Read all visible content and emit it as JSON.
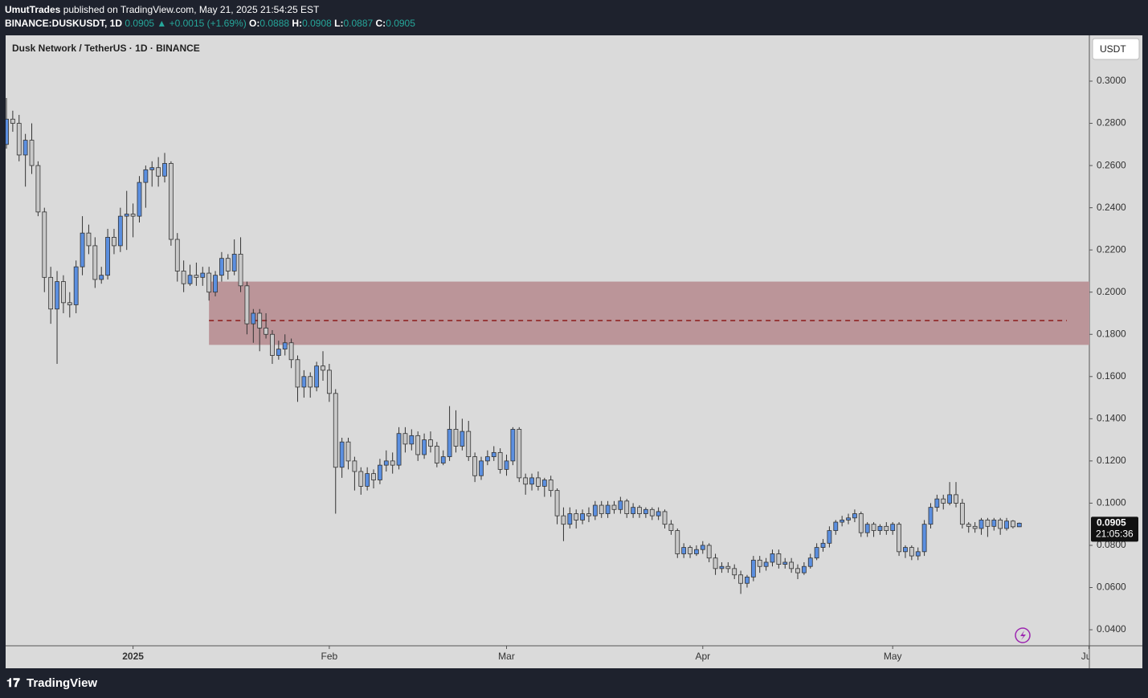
{
  "header": {
    "author": "UmutTrades",
    "published": "published on TradingView.com, May 21, 2025 21:54:25 EST",
    "symbol": "BINANCE:DUSKUSDT, 1D",
    "price": "0.0905",
    "change": "▲ +0.0015 (+1.69%)",
    "ohlc": [
      {
        "label": "O:",
        "value": "0.0888"
      },
      {
        "label": "H:",
        "value": "0.0908"
      },
      {
        "label": "L:",
        "value": "0.0887"
      },
      {
        "label": "C:",
        "value": "0.0905"
      }
    ]
  },
  "chart_data": {
    "type": "candlestick",
    "title": "Dusk Network / TetherUS · 1D · BINANCE",
    "currency": "USDT",
    "up_color": "#5b8fe0",
    "down_color": "#c9c9c9",
    "ylim": [
      0.0324,
      0.3217
    ],
    "yticks": [
      {
        "value": 0.04,
        "label": "0.0400"
      },
      {
        "value": 0.06,
        "label": "0.0600"
      },
      {
        "value": 0.08,
        "label": "0.0800"
      },
      {
        "value": 0.1,
        "label": "0.1000"
      },
      {
        "value": 0.12,
        "label": "0.1200"
      },
      {
        "value": 0.14,
        "label": "0.1400"
      },
      {
        "value": 0.16,
        "label": "0.1600"
      },
      {
        "value": 0.18,
        "label": "0.1800"
      },
      {
        "value": 0.2,
        "label": "0.2000"
      },
      {
        "value": 0.22,
        "label": "0.2200"
      },
      {
        "value": 0.24,
        "label": "0.2400"
      },
      {
        "value": 0.26,
        "label": "0.2600"
      },
      {
        "value": 0.28,
        "label": "0.2800"
      },
      {
        "value": 0.3,
        "label": "0.3000"
      }
    ],
    "xticks": [
      {
        "value": 20,
        "label": "2025"
      },
      {
        "value": 51,
        "label": "Feb"
      },
      {
        "value": 79,
        "label": "Mar"
      },
      {
        "value": 110,
        "label": "Apr"
      },
      {
        "value": 140,
        "label": "May"
      },
      {
        "value": 171,
        "label": "Jun"
      }
    ],
    "last_price": {
      "value": 0.0905,
      "label": "0.0905"
    },
    "countdown": "21:05:36",
    "zone": {
      "high": 0.205,
      "low": 0.175,
      "mid": 0.1865,
      "start_index": 32,
      "color": "#bb9599",
      "line_color": "#8b1a1a"
    },
    "candles": [
      [
        0.27,
        0.292,
        0.268,
        0.282
      ],
      [
        0.282,
        0.286,
        0.276,
        0.28
      ],
      [
        0.28,
        0.284,
        0.262,
        0.265
      ],
      [
        0.265,
        0.275,
        0.25,
        0.272
      ],
      [
        0.272,
        0.28,
        0.256,
        0.26
      ],
      [
        0.26,
        0.262,
        0.236,
        0.238
      ],
      [
        0.238,
        0.24,
        0.2,
        0.207
      ],
      [
        0.207,
        0.212,
        0.185,
        0.192
      ],
      [
        0.192,
        0.21,
        0.166,
        0.205
      ],
      [
        0.205,
        0.208,
        0.19,
        0.195
      ],
      [
        0.195,
        0.2,
        0.188,
        0.194
      ],
      [
        0.194,
        0.215,
        0.19,
        0.212
      ],
      [
        0.212,
        0.236,
        0.208,
        0.228
      ],
      [
        0.228,
        0.232,
        0.218,
        0.222
      ],
      [
        0.222,
        0.226,
        0.202,
        0.206
      ],
      [
        0.206,
        0.212,
        0.204,
        0.208
      ],
      [
        0.208,
        0.23,
        0.206,
        0.226
      ],
      [
        0.226,
        0.23,
        0.218,
        0.222
      ],
      [
        0.222,
        0.24,
        0.219,
        0.236
      ],
      [
        0.236,
        0.248,
        0.22,
        0.237
      ],
      [
        0.237,
        0.242,
        0.226,
        0.236
      ],
      [
        0.236,
        0.255,
        0.233,
        0.252
      ],
      [
        0.252,
        0.26,
        0.24,
        0.258
      ],
      [
        0.258,
        0.262,
        0.25,
        0.259
      ],
      [
        0.259,
        0.264,
        0.25,
        0.255
      ],
      [
        0.255,
        0.266,
        0.252,
        0.261
      ],
      [
        0.261,
        0.262,
        0.222,
        0.225
      ],
      [
        0.225,
        0.228,
        0.205,
        0.21
      ],
      [
        0.21,
        0.215,
        0.2,
        0.204
      ],
      [
        0.204,
        0.213,
        0.203,
        0.208
      ],
      [
        0.208,
        0.214,
        0.203,
        0.207
      ],
      [
        0.207,
        0.212,
        0.203,
        0.209
      ],
      [
        0.209,
        0.212,
        0.196,
        0.2
      ],
      [
        0.2,
        0.21,
        0.198,
        0.208
      ],
      [
        0.208,
        0.219,
        0.205,
        0.216
      ],
      [
        0.216,
        0.218,
        0.206,
        0.21
      ],
      [
        0.21,
        0.225,
        0.208,
        0.218
      ],
      [
        0.218,
        0.226,
        0.2,
        0.203
      ],
      [
        0.203,
        0.205,
        0.18,
        0.185
      ],
      [
        0.185,
        0.192,
        0.176,
        0.19
      ],
      [
        0.19,
        0.192,
        0.172,
        0.183
      ],
      [
        0.183,
        0.19,
        0.178,
        0.18
      ],
      [
        0.18,
        0.182,
        0.166,
        0.17
      ],
      [
        0.17,
        0.177,
        0.168,
        0.173
      ],
      [
        0.173,
        0.18,
        0.17,
        0.176
      ],
      [
        0.176,
        0.178,
        0.164,
        0.168
      ],
      [
        0.168,
        0.17,
        0.148,
        0.155
      ],
      [
        0.155,
        0.163,
        0.15,
        0.16
      ],
      [
        0.16,
        0.162,
        0.15,
        0.155
      ],
      [
        0.155,
        0.167,
        0.153,
        0.165
      ],
      [
        0.165,
        0.172,
        0.158,
        0.163
      ],
      [
        0.163,
        0.166,
        0.148,
        0.152
      ],
      [
        0.152,
        0.154,
        0.095,
        0.117
      ],
      [
        0.117,
        0.131,
        0.112,
        0.129
      ],
      [
        0.129,
        0.131,
        0.116,
        0.12
      ],
      [
        0.12,
        0.122,
        0.106,
        0.115
      ],
      [
        0.115,
        0.117,
        0.104,
        0.108
      ],
      [
        0.108,
        0.117,
        0.106,
        0.114
      ],
      [
        0.114,
        0.116,
        0.107,
        0.111
      ],
      [
        0.111,
        0.121,
        0.109,
        0.118
      ],
      [
        0.118,
        0.125,
        0.115,
        0.12
      ],
      [
        0.12,
        0.124,
        0.114,
        0.118
      ],
      [
        0.118,
        0.136,
        0.116,
        0.133
      ],
      [
        0.133,
        0.136,
        0.124,
        0.128
      ],
      [
        0.128,
        0.135,
        0.125,
        0.132
      ],
      [
        0.132,
        0.134,
        0.12,
        0.123
      ],
      [
        0.123,
        0.133,
        0.121,
        0.13
      ],
      [
        0.13,
        0.134,
        0.124,
        0.127
      ],
      [
        0.127,
        0.129,
        0.117,
        0.119
      ],
      [
        0.119,
        0.125,
        0.118,
        0.122
      ],
      [
        0.122,
        0.146,
        0.12,
        0.135
      ],
      [
        0.135,
        0.144,
        0.124,
        0.127
      ],
      [
        0.127,
        0.14,
        0.125,
        0.134
      ],
      [
        0.134,
        0.139,
        0.12,
        0.122
      ],
      [
        0.122,
        0.124,
        0.11,
        0.113
      ],
      [
        0.113,
        0.122,
        0.111,
        0.12
      ],
      [
        0.12,
        0.125,
        0.118,
        0.122
      ],
      [
        0.122,
        0.127,
        0.12,
        0.124
      ],
      [
        0.124,
        0.126,
        0.114,
        0.116
      ],
      [
        0.116,
        0.123,
        0.113,
        0.12
      ],
      [
        0.12,
        0.136,
        0.118,
        0.135
      ],
      [
        0.135,
        0.136,
        0.11,
        0.112
      ],
      [
        0.112,
        0.114,
        0.104,
        0.109
      ],
      [
        0.109,
        0.114,
        0.106,
        0.112
      ],
      [
        0.112,
        0.115,
        0.106,
        0.108
      ],
      [
        0.108,
        0.112,
        0.103,
        0.111
      ],
      [
        0.111,
        0.113,
        0.103,
        0.106
      ],
      [
        0.106,
        0.107,
        0.09,
        0.094
      ],
      [
        0.094,
        0.098,
        0.082,
        0.09
      ],
      [
        0.09,
        0.098,
        0.088,
        0.095
      ],
      [
        0.095,
        0.097,
        0.088,
        0.092
      ],
      [
        0.092,
        0.097,
        0.09,
        0.095
      ],
      [
        0.095,
        0.098,
        0.091,
        0.094
      ],
      [
        0.094,
        0.101,
        0.092,
        0.099
      ],
      [
        0.099,
        0.101,
        0.093,
        0.095
      ],
      [
        0.095,
        0.101,
        0.093,
        0.099
      ],
      [
        0.099,
        0.101,
        0.095,
        0.097
      ],
      [
        0.097,
        0.103,
        0.095,
        0.101
      ],
      [
        0.101,
        0.102,
        0.093,
        0.095
      ],
      [
        0.095,
        0.1,
        0.093,
        0.098
      ],
      [
        0.098,
        0.099,
        0.093,
        0.095
      ],
      [
        0.095,
        0.098,
        0.093,
        0.097
      ],
      [
        0.097,
        0.098,
        0.092,
        0.094
      ],
      [
        0.094,
        0.098,
        0.092,
        0.096
      ],
      [
        0.096,
        0.097,
        0.088,
        0.09
      ],
      [
        0.09,
        0.092,
        0.085,
        0.087
      ],
      [
        0.087,
        0.088,
        0.074,
        0.076
      ],
      [
        0.076,
        0.081,
        0.074,
        0.079
      ],
      [
        0.079,
        0.08,
        0.074,
        0.076
      ],
      [
        0.076,
        0.08,
        0.075,
        0.078
      ],
      [
        0.078,
        0.082,
        0.076,
        0.08
      ],
      [
        0.08,
        0.081,
        0.072,
        0.074
      ],
      [
        0.074,
        0.076,
        0.066,
        0.069
      ],
      [
        0.069,
        0.072,
        0.067,
        0.07
      ],
      [
        0.07,
        0.072,
        0.067,
        0.069
      ],
      [
        0.069,
        0.071,
        0.064,
        0.066
      ],
      [
        0.066,
        0.068,
        0.057,
        0.062
      ],
      [
        0.062,
        0.066,
        0.06,
        0.065
      ],
      [
        0.065,
        0.075,
        0.063,
        0.073
      ],
      [
        0.073,
        0.075,
        0.067,
        0.07
      ],
      [
        0.07,
        0.074,
        0.068,
        0.072
      ],
      [
        0.072,
        0.078,
        0.07,
        0.076
      ],
      [
        0.076,
        0.078,
        0.069,
        0.071
      ],
      [
        0.071,
        0.074,
        0.069,
        0.072
      ],
      [
        0.072,
        0.074,
        0.067,
        0.069
      ],
      [
        0.069,
        0.071,
        0.064,
        0.067
      ],
      [
        0.067,
        0.072,
        0.066,
        0.07
      ],
      [
        0.07,
        0.076,
        0.069,
        0.074
      ],
      [
        0.074,
        0.081,
        0.073,
        0.079
      ],
      [
        0.079,
        0.083,
        0.077,
        0.081
      ],
      [
        0.081,
        0.089,
        0.079,
        0.087
      ],
      [
        0.087,
        0.092,
        0.085,
        0.091
      ],
      [
        0.091,
        0.094,
        0.089,
        0.092
      ],
      [
        0.092,
        0.095,
        0.09,
        0.093
      ],
      [
        0.093,
        0.097,
        0.091,
        0.095
      ],
      [
        0.095,
        0.096,
        0.084,
        0.086
      ],
      [
        0.086,
        0.091,
        0.084,
        0.09
      ],
      [
        0.09,
        0.091,
        0.084,
        0.087
      ],
      [
        0.087,
        0.09,
        0.085,
        0.089
      ],
      [
        0.089,
        0.091,
        0.085,
        0.087
      ],
      [
        0.087,
        0.091,
        0.085,
        0.09
      ],
      [
        0.09,
        0.091,
        0.075,
        0.077
      ],
      [
        0.077,
        0.08,
        0.074,
        0.079
      ],
      [
        0.079,
        0.08,
        0.073,
        0.075
      ],
      [
        0.075,
        0.079,
        0.073,
        0.077
      ],
      [
        0.077,
        0.092,
        0.075,
        0.09
      ],
      [
        0.09,
        0.1,
        0.088,
        0.098
      ],
      [
        0.098,
        0.104,
        0.096,
        0.102
      ],
      [
        0.102,
        0.104,
        0.097,
        0.1
      ],
      [
        0.1,
        0.11,
        0.099,
        0.104
      ],
      [
        0.104,
        0.11,
        0.098,
        0.1
      ],
      [
        0.1,
        0.102,
        0.088,
        0.09
      ],
      [
        0.09,
        0.091,
        0.086,
        0.089
      ],
      [
        0.089,
        0.091,
        0.086,
        0.088
      ],
      [
        0.088,
        0.093,
        0.085,
        0.092
      ],
      [
        0.092,
        0.093,
        0.084,
        0.089
      ],
      [
        0.089,
        0.093,
        0.087,
        0.092
      ],
      [
        0.092,
        0.093,
        0.085,
        0.088
      ],
      [
        0.088,
        0.093,
        0.087,
        0.0915
      ],
      [
        0.0915,
        0.092,
        0.088,
        0.0888
      ],
      [
        0.0888,
        0.0908,
        0.0887,
        0.0905
      ]
    ]
  },
  "footer": {
    "brand": "TradingView"
  }
}
